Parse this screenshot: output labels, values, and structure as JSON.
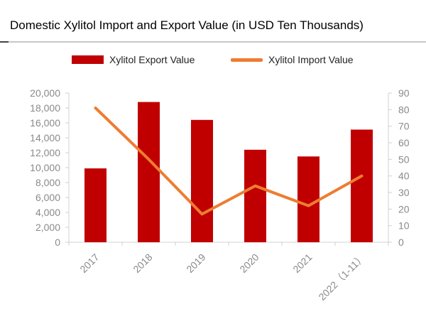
{
  "title": "Domestic Xylitol Import and Export Value (in USD Ten Thousands)",
  "legend": {
    "export_label": "Xylitol Export Value",
    "import_label": "Xylitol Import Value"
  },
  "colors": {
    "export_bar": "#c00000",
    "import_line": "#ed7d31",
    "axis": "#d0d0d0",
    "tick_text": "#8a8a8a"
  },
  "chart_data": {
    "type": "bar",
    "title": "Domestic Xylitol Import and Export Value (in USD Ten Thousands)",
    "categories": [
      "2017",
      "2018",
      "2019",
      "2020",
      "2021",
      "2022（1-11）"
    ],
    "series": [
      {
        "name": "Xylitol Export Value",
        "type": "bar",
        "axis": "left",
        "values": [
          9900,
          18800,
          16400,
          12400,
          11500,
          15100
        ]
      },
      {
        "name": "Xylitol Import Value",
        "type": "line",
        "axis": "right",
        "values": [
          81,
          50,
          17,
          34,
          22,
          40
        ]
      }
    ],
    "y_left": {
      "min": 0,
      "max": 20000,
      "ticks": [
        0,
        2000,
        4000,
        6000,
        8000,
        10000,
        12000,
        14000,
        16000,
        18000,
        20000
      ],
      "tick_labels": [
        "0",
        "2,000",
        "4,000",
        "6,000",
        "8,000",
        "10,000",
        "12,000",
        "14,000",
        "16,000",
        "18,000",
        "20,000"
      ]
    },
    "y_right": {
      "min": 0,
      "max": 90,
      "ticks": [
        0,
        10,
        20,
        30,
        40,
        50,
        60,
        70,
        80,
        90
      ],
      "tick_labels": [
        "0",
        "10",
        "20",
        "30",
        "40",
        "50",
        "60",
        "70",
        "80",
        "90"
      ]
    },
    "grid": false,
    "legend_position": "top"
  }
}
